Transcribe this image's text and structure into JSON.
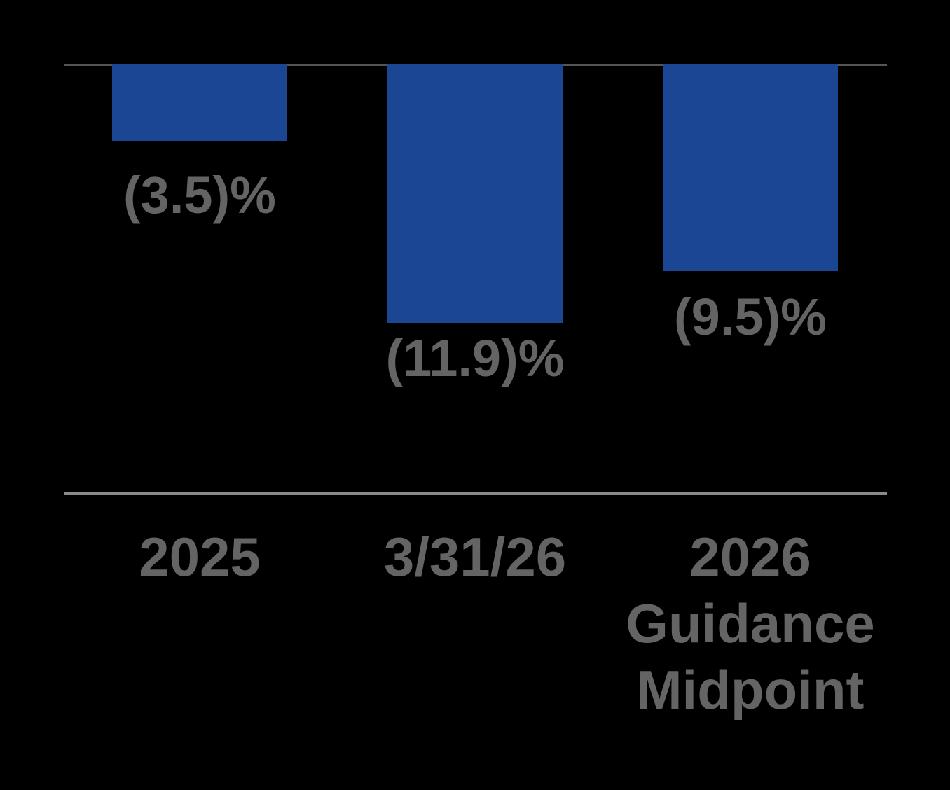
{
  "chart_data": {
    "type": "bar",
    "orientation": "vertical",
    "direction": "negative-bars-hang-down-from-zero-line-at-top",
    "categories": [
      "2025",
      "3/31/26",
      "2026 Guidance Midpoint"
    ],
    "values": [
      -3.5,
      -11.9,
      -9.5
    ],
    "value_labels": [
      "(3.5)%",
      "(11.9)%",
      "(9.5)%"
    ],
    "unit": "%",
    "ylim": [
      -13.5,
      0
    ],
    "grid": false,
    "legend": false,
    "axes": {
      "zero_axis_at_top": true,
      "x_axis_separator_line": true,
      "y_axis_ticks_visible": false
    },
    "colors": {
      "background": "#000000",
      "bar": "#1A4693",
      "label_text": "#646464",
      "zero_axis_line": "#555555",
      "baseline_separator": "#8A8A8A"
    }
  }
}
